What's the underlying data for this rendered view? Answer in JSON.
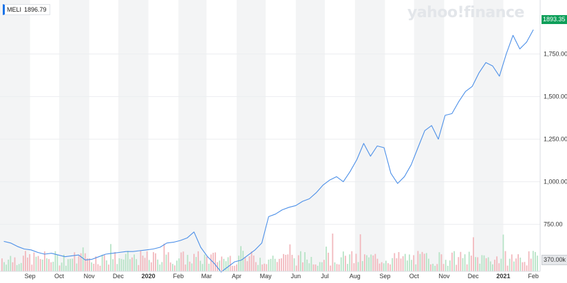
{
  "legend": {
    "symbol": "MELI",
    "value": "1896.79"
  },
  "watermark": "yahoo!finance",
  "last_price_badge": "1893.35",
  "volume_badge": "370.00k",
  "colors": {
    "line": "#4b8fe8",
    "band": "#f3f4f5",
    "grid": "#ebedf0",
    "vol_up": "#b7e3c6",
    "vol_down": "#f2b8bd",
    "badge": "#0e9f5a"
  },
  "chart_data": {
    "type": "line",
    "series": [
      {
        "name": "MELI",
        "x": [
          "2019-08-05",
          "2019-08-12",
          "2019-08-19",
          "2019-08-26",
          "2019-09-02",
          "2019-09-09",
          "2019-09-16",
          "2019-09-23",
          "2019-09-30",
          "2019-10-07",
          "2019-10-14",
          "2019-10-21",
          "2019-10-28",
          "2019-11-04",
          "2019-11-11",
          "2019-11-18",
          "2019-11-25",
          "2019-12-02",
          "2019-12-09",
          "2019-12-16",
          "2019-12-23",
          "2019-12-30",
          "2020-01-06",
          "2020-01-13",
          "2020-01-20",
          "2020-01-27",
          "2020-02-03",
          "2020-02-10",
          "2020-02-17",
          "2020-02-24",
          "2020-03-02",
          "2020-03-09",
          "2020-03-16",
          "2020-03-23",
          "2020-03-30",
          "2020-04-06",
          "2020-04-13",
          "2020-04-20",
          "2020-04-27",
          "2020-05-04",
          "2020-05-11",
          "2020-05-18",
          "2020-05-25",
          "2020-06-01",
          "2020-06-08",
          "2020-06-15",
          "2020-06-22",
          "2020-06-29",
          "2020-07-06",
          "2020-07-13",
          "2020-07-20",
          "2020-07-27",
          "2020-08-03",
          "2020-08-10",
          "2020-08-17",
          "2020-08-24",
          "2020-08-31",
          "2020-09-07",
          "2020-09-14",
          "2020-09-21",
          "2020-09-28",
          "2020-10-05",
          "2020-10-12",
          "2020-10-19",
          "2020-10-26",
          "2020-11-02",
          "2020-11-09",
          "2020-11-16",
          "2020-11-23",
          "2020-11-30",
          "2020-12-07",
          "2020-12-14",
          "2020-12-21",
          "2020-12-28",
          "2021-01-04",
          "2021-01-11",
          "2021-01-18",
          "2021-01-25",
          "2021-02-01"
        ],
        "y": [
          650,
          640,
          620,
          605,
          600,
          585,
          575,
          580,
          570,
          560,
          565,
          570,
          540,
          545,
          560,
          575,
          580,
          585,
          590,
          590,
          595,
          600,
          605,
          615,
          640,
          645,
          655,
          670,
          705,
          615,
          560,
          520,
          470,
          500,
          530,
          540,
          570,
          600,
          640,
          795,
          810,
          835,
          850,
          860,
          885,
          900,
          935,
          980,
          1010,
          1030,
          1000,
          1060,
          1130,
          1225,
          1150,
          1210,
          1200,
          1050,
          990,
          1030,
          1100,
          1200,
          1300,
          1330,
          1250,
          1390,
          1400,
          1470,
          1530,
          1560,
          1640,
          1700,
          1680,
          1620,
          1750,
          1860,
          1780,
          1820,
          1893
        ]
      }
    ],
    "volume_label": "370.00k",
    "x_tick_labels": [
      "Sep",
      "Oct",
      "Nov",
      "Dec",
      "2020",
      "Feb",
      "Mar",
      "Apr",
      "May",
      "Jun",
      "Jul",
      "Aug",
      "Sep",
      "Oct",
      "Nov",
      "Dec",
      "2021",
      "Feb"
    ],
    "y_tick_labels": [
      "1,750.00",
      "1,500.00",
      "1,250.00",
      "1,000.00",
      "750.00"
    ],
    "ylim": [
      420,
      2000
    ],
    "grid": true,
    "legend": "top-left"
  }
}
